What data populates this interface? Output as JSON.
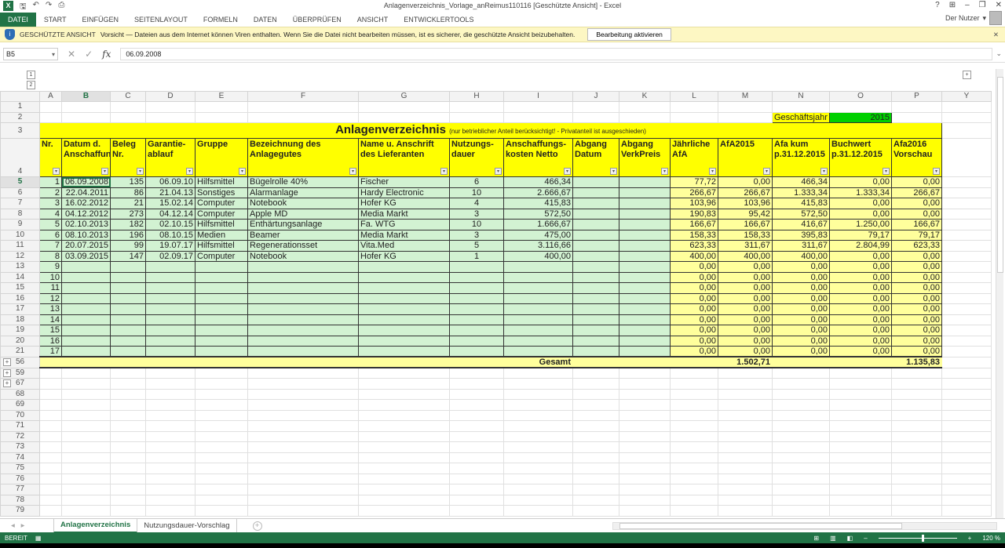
{
  "window": {
    "title": "Anlagenverzeichnis_Vorlage_anReimus110116  [Geschützte Ansicht] - Excel",
    "help": "?",
    "user": "Der Nutzer"
  },
  "ribbon": {
    "tabs": [
      "DATEI",
      "START",
      "EINFÜGEN",
      "SEITENLAYOUT",
      "FORMELN",
      "DATEN",
      "ÜBERPRÜFEN",
      "ANSICHT",
      "ENTWICKLERTOOLS"
    ],
    "active": "DATEI"
  },
  "protected": {
    "label": "GESCHÜTZTE ANSICHT",
    "message": "Vorsicht — Dateien aus dem Internet können Viren enthalten. Wenn Sie die Datei nicht bearbeiten müssen, ist es sicherer, die geschützte Ansicht beizubehalten.",
    "button": "Bearbeitung aktivieren"
  },
  "formula": {
    "name_box": "B5",
    "value": "06.09.2008"
  },
  "columns": [
    "A",
    "B",
    "C",
    "D",
    "E",
    "F",
    "G",
    "H",
    "I",
    "J",
    "K",
    "L",
    "M",
    "N",
    "O",
    "P",
    "Y"
  ],
  "sheet": {
    "year_label": "Geschäftsjahr",
    "year": "2015",
    "title": "Anlagenverzeichnis",
    "subtitle": "(nur betrieblicher Anteil berücksichtigt! - Privatanteil ist ausgeschieden)",
    "headers": [
      "Nr.",
      "Datum d. Anschaffung",
      "Beleg Nr.",
      "Garantie-ablauf",
      "Gruppe",
      "Bezeichnung des Anlagegutes",
      "Name u. Anschrift des Lieferanten",
      "Nutzungs-dauer",
      "Anschaffungs-kosten Netto",
      "Abgang Datum",
      "Abgang VerkPreis",
      "Jährliche AfA",
      "AfA2015",
      "Afa kum p.31.12.2015",
      "Buchwert p.31.12.2015",
      "Afa2016 Vorschau"
    ],
    "rows": [
      [
        "1",
        "06.09.2008",
        "135",
        "06.09.10",
        "Hilfsmittel",
        "Bügelrolle 40%",
        "Fischer",
        "6",
        "466,34",
        "",
        "",
        "77,72",
        "0,00",
        "466,34",
        "0,00",
        "0,00"
      ],
      [
        "2",
        "22.04.2011",
        "86",
        "21.04.13",
        "Sonstiges",
        "Alarmanlage",
        "Hardy Electronic",
        "10",
        "2.666,67",
        "",
        "",
        "266,67",
        "266,67",
        "1.333,34",
        "1.333,34",
        "266,67"
      ],
      [
        "3",
        "16.02.2012",
        "21",
        "15.02.14",
        "Computer",
        "Notebook",
        "Hofer KG",
        "4",
        "415,83",
        "",
        "",
        "103,96",
        "103,96",
        "415,83",
        "0,00",
        "0,00"
      ],
      [
        "4",
        "04.12.2012",
        "273",
        "04.12.14",
        "Computer",
        "Apple MD",
        "Media Markt",
        "3",
        "572,50",
        "",
        "",
        "190,83",
        "95,42",
        "572,50",
        "0,00",
        "0,00"
      ],
      [
        "5",
        "02.10.2013",
        "182",
        "02.10.15",
        "Hilfsmittel",
        "Enthärtungsanlage",
        "Fa. WTG",
        "10",
        "1.666,67",
        "",
        "",
        "166,67",
        "166,67",
        "416,67",
        "1.250,00",
        "166,67"
      ],
      [
        "6",
        "08.10.2013",
        "196",
        "08.10.15",
        "Medien",
        "Beamer",
        "Media Markt",
        "3",
        "475,00",
        "",
        "",
        "158,33",
        "158,33",
        "395,83",
        "79,17",
        "79,17"
      ],
      [
        "7",
        "20.07.2015",
        "99",
        "19.07.17",
        "Hilfsmittel",
        "Regenerationsset",
        "Vita.Med",
        "5",
        "3.116,66",
        "",
        "",
        "623,33",
        "311,67",
        "311,67",
        "2.804,99",
        "623,33"
      ],
      [
        "8",
        "03.09.2015",
        "147",
        "02.09.17",
        "Computer",
        "Notebook",
        "Hofer KG",
        "1",
        "400,00",
        "",
        "",
        "400,00",
        "400,00",
        "400,00",
        "0,00",
        "0,00"
      ],
      [
        "9",
        "",
        "",
        "",
        "",
        "",
        "",
        "",
        "",
        "",
        "",
        "0,00",
        "0,00",
        "0,00",
        "0,00",
        "0,00"
      ],
      [
        "10",
        "",
        "",
        "",
        "",
        "",
        "",
        "",
        "",
        "",
        "",
        "0,00",
        "0,00",
        "0,00",
        "0,00",
        "0,00"
      ],
      [
        "11",
        "",
        "",
        "",
        "",
        "",
        "",
        "",
        "",
        "",
        "",
        "0,00",
        "0,00",
        "0,00",
        "0,00",
        "0,00"
      ],
      [
        "12",
        "",
        "",
        "",
        "",
        "",
        "",
        "",
        "",
        "",
        "",
        "0,00",
        "0,00",
        "0,00",
        "0,00",
        "0,00"
      ],
      [
        "13",
        "",
        "",
        "",
        "",
        "",
        "",
        "",
        "",
        "",
        "",
        "0,00",
        "0,00",
        "0,00",
        "0,00",
        "0,00"
      ],
      [
        "14",
        "",
        "",
        "",
        "",
        "",
        "",
        "",
        "",
        "",
        "",
        "0,00",
        "0,00",
        "0,00",
        "0,00",
        "0,00"
      ],
      [
        "15",
        "",
        "",
        "",
        "",
        "",
        "",
        "",
        "",
        "",
        "",
        "0,00",
        "0,00",
        "0,00",
        "0,00",
        "0,00"
      ],
      [
        "16",
        "",
        "",
        "",
        "",
        "",
        "",
        "",
        "",
        "",
        "",
        "0,00",
        "0,00",
        "0,00",
        "0,00",
        "0,00"
      ],
      [
        "17",
        "",
        "",
        "",
        "",
        "",
        "",
        "",
        "",
        "",
        "",
        "0,00",
        "0,00",
        "0,00",
        "0,00",
        "0,00"
      ]
    ],
    "total_label": "Gesamt",
    "total_afa": "1.502,71",
    "total_vorschau": "1.135,83",
    "trailing_rows": [
      "59",
      "67",
      "68",
      "69",
      "70",
      "71",
      "72",
      "73",
      "74",
      "75",
      "76",
      "77",
      "78",
      "79"
    ]
  },
  "sheets": {
    "tabs": [
      "Anlagenverzeichnis",
      "Nutzungsdauer-Vorschlag"
    ],
    "active": "Anlagenverzeichnis"
  },
  "status": {
    "ready": "BEREIT",
    "zoom": "120 %"
  },
  "colors": {
    "accent": "#217346",
    "header_yellow": "#ffff00",
    "row_green": "#d2f2d2",
    "row_yellow": "#ffff9c",
    "year_green": "#00d000"
  }
}
